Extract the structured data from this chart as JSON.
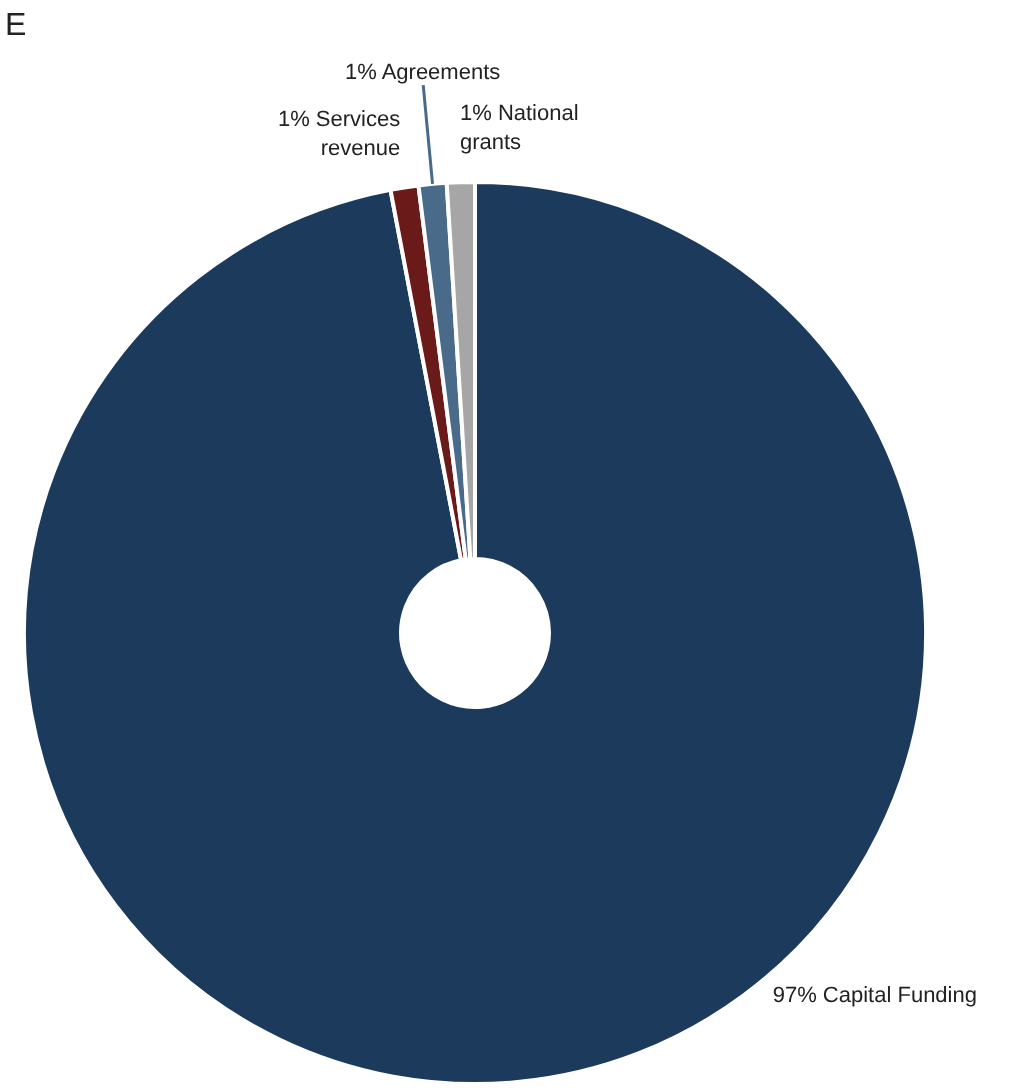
{
  "chart_data": {
    "type": "donut",
    "title": "E",
    "categories": [
      "Capital Funding",
      "Services revenue",
      "Agreements",
      "National grants"
    ],
    "values": [
      97,
      1,
      1,
      1
    ],
    "colors": [
      "#1b3a5c",
      "#6b1a1a",
      "#4a6a8a",
      "#a6a6a6"
    ],
    "value_labels": [
      "97%",
      "1%",
      "1%",
      "1%"
    ]
  }
}
